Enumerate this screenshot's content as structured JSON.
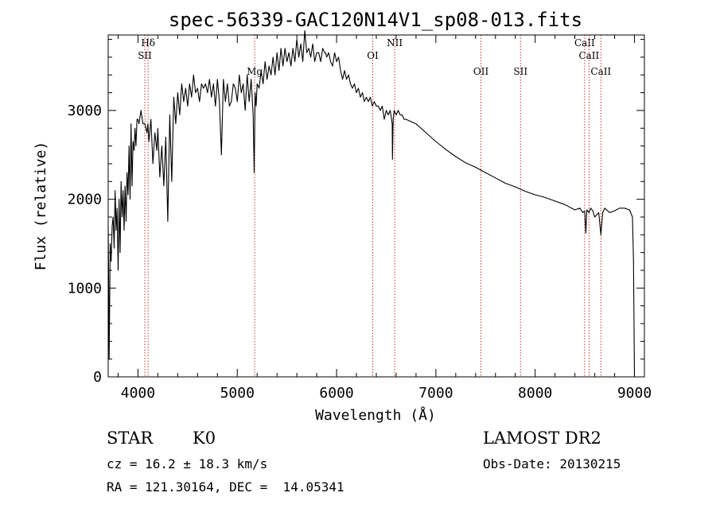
{
  "chart_data": {
    "type": "line",
    "title": "spec-56339-GAC120N14V1_sp08-013.fits",
    "xlabel": "Wavelength (Å)",
    "ylabel": "Flux (relative)",
    "xlim": [
      3700,
      9100
    ],
    "ylim": [
      0,
      3850
    ],
    "x_ticks": [
      4000,
      5000,
      6000,
      7000,
      8000,
      9000
    ],
    "y_ticks": [
      0,
      1000,
      2000,
      3000
    ],
    "grid": false,
    "series": [
      {
        "color": "#000000",
        "x": [
          3700,
          3705,
          3710,
          3720,
          3730,
          3740,
          3750,
          3760,
          3770,
          3780,
          3790,
          3800,
          3810,
          3820,
          3830,
          3840,
          3850,
          3860,
          3870,
          3880,
          3890,
          3900,
          3910,
          3920,
          3930,
          3940,
          3950,
          3960,
          3970,
          3980,
          3990,
          4000,
          4010,
          4030,
          4050,
          4070,
          4090,
          4100,
          4110,
          4130,
          4150,
          4170,
          4190,
          4200,
          4220,
          4240,
          4260,
          4280,
          4300,
          4320,
          4340,
          4360,
          4380,
          4400,
          4420,
          4440,
          4460,
          4480,
          4500,
          4520,
          4540,
          4560,
          4580,
          4600,
          4620,
          4640,
          4660,
          4680,
          4700,
          4720,
          4740,
          4760,
          4780,
          4800,
          4820,
          4840,
          4860,
          4880,
          4900,
          4920,
          4940,
          4960,
          4980,
          5000,
          5020,
          5040,
          5060,
          5080,
          5100,
          5120,
          5140,
          5160,
          5170,
          5180,
          5190,
          5200,
          5220,
          5240,
          5260,
          5280,
          5300,
          5320,
          5340,
          5360,
          5380,
          5400,
          5420,
          5440,
          5460,
          5480,
          5500,
          5520,
          5540,
          5560,
          5580,
          5600,
          5620,
          5640,
          5660,
          5680,
          5700,
          5720,
          5740,
          5760,
          5780,
          5800,
          5820,
          5840,
          5860,
          5880,
          5890,
          5900,
          5920,
          5940,
          5960,
          5980,
          6000,
          6020,
          6040,
          6060,
          6080,
          6100,
          6120,
          6140,
          6160,
          6180,
          6200,
          6220,
          6240,
          6260,
          6280,
          6300,
          6320,
          6340,
          6360,
          6380,
          6400,
          6420,
          6440,
          6460,
          6480,
          6500,
          6520,
          6540,
          6560,
          6563,
          6570,
          6580,
          6600,
          6620,
          6640,
          6660,
          6680,
          6700,
          6800,
          6900,
          7000,
          7100,
          7200,
          7300,
          7400,
          7500,
          7600,
          7700,
          7800,
          7900,
          8000,
          8100,
          8200,
          8300,
          8400,
          8450,
          8480,
          8498,
          8510,
          8520,
          8542,
          8560,
          8580,
          8600,
          8640,
          8662,
          8680,
          8700,
          8750,
          8800,
          8850,
          8900,
          8950,
          8980,
          8990,
          9000
        ],
        "y": [
          1700,
          1100,
          200,
          1500,
          1300,
          1700,
          1800,
          1450,
          2100,
          1650,
          1900,
          1200,
          2000,
          1400,
          2200,
          1800,
          2100,
          1650,
          2150,
          1750,
          2300,
          2050,
          2600,
          2000,
          2850,
          2150,
          2650,
          2550,
          2800,
          2600,
          2900,
          2900,
          2850,
          3000,
          2850,
          2850,
          2750,
          2850,
          2650,
          2900,
          2400,
          2750,
          2550,
          2800,
          2250,
          2600,
          2150,
          2700,
          1750,
          2950,
          2200,
          3150,
          2850,
          3200,
          2950,
          3300,
          3100,
          3250,
          3050,
          3300,
          3150,
          3400,
          3200,
          3250,
          3100,
          3300,
          3250,
          3300,
          3200,
          3350,
          3150,
          3300,
          3050,
          3350,
          3100,
          2500,
          3350,
          3100,
          3300,
          3050,
          3100,
          3300,
          3250,
          3100,
          3400,
          3200,
          3300,
          3000,
          3400,
          3100,
          3350,
          2950,
          2300,
          3200,
          3050,
          3300,
          3250,
          3450,
          3300,
          3550,
          3350,
          3500,
          3400,
          3600,
          3400,
          3650,
          3450,
          3700,
          3500,
          3700,
          3550,
          3650,
          3500,
          3700,
          3550,
          3800,
          3600,
          3750,
          3550,
          3900,
          3650,
          3700,
          3600,
          3750,
          3550,
          3650,
          3650,
          3550,
          3700,
          3650,
          3650,
          3600,
          3650,
          3550,
          3500,
          3650,
          3550,
          3600,
          3450,
          3350,
          3450,
          3350,
          3400,
          3300,
          3250,
          3300,
          3200,
          3250,
          3150,
          3200,
          3100,
          3150,
          3100,
          3150,
          3050,
          3100,
          3050,
          3050,
          3000,
          3050,
          2900,
          3000,
          2950,
          3000,
          2850,
          2450,
          2900,
          3000,
          2950,
          3000,
          2950,
          2950,
          2900,
          2900,
          2850,
          2750,
          2650,
          2560,
          2480,
          2410,
          2360,
          2300,
          2240,
          2180,
          2140,
          2090,
          2050,
          2020,
          1980,
          1940,
          1880,
          1900,
          1850,
          1870,
          1620,
          1880,
          1850,
          1900,
          1870,
          1800,
          1850,
          1600,
          1850,
          1900,
          1850,
          1870,
          1900,
          1900,
          1880,
          1800,
          1300,
          0
        ]
      }
    ],
    "spectral_lines": [
      {
        "label": "Hδ",
        "x": 4102
      },
      {
        "label": "SII",
        "x": 4069
      },
      {
        "label": "Mg",
        "x": 5175
      },
      {
        "label": "OI",
        "x": 6364
      },
      {
        "label": "NII",
        "x": 6585
      },
      {
        "label": "OII",
        "x": 7454
      },
      {
        "label": "SII",
        "x": 7852
      },
      {
        "label": "CaII",
        "x": 8498
      },
      {
        "label": "CaII",
        "x": 8542
      },
      {
        "label": "CaII",
        "x": 8662
      }
    ],
    "line_color": "#cc3333"
  },
  "info": {
    "object_type": "STAR",
    "subclass": "K0",
    "survey": "LAMOST DR2",
    "redshift": "cz = 16.2 ± 18.3 km/s",
    "obs_date": "Obs-Date: 20130215",
    "coords": "RA = 121.30164, DEC =  14.05341"
  }
}
